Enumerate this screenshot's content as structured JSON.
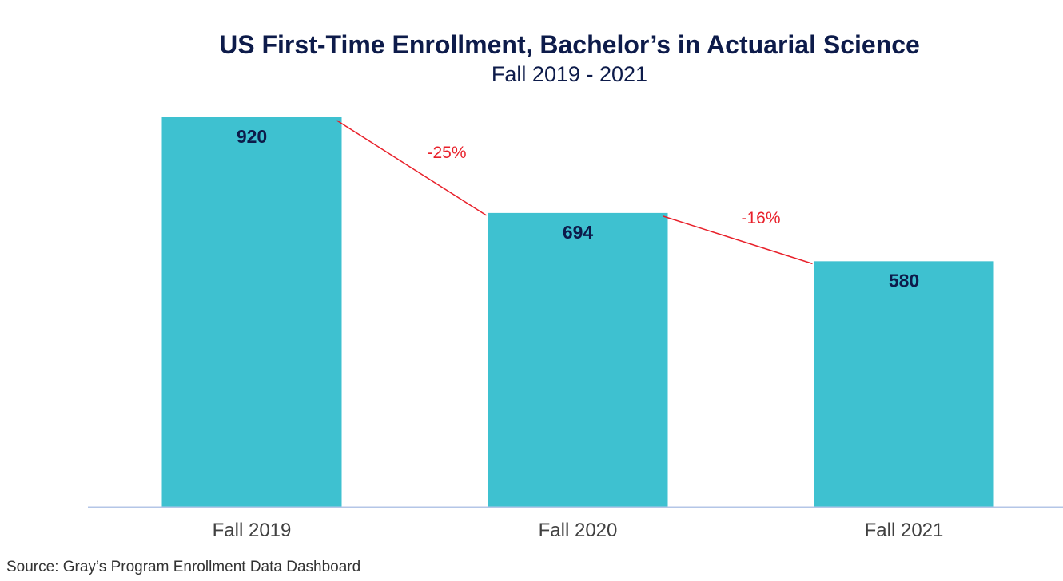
{
  "chart_data": {
    "type": "bar",
    "title": "US First-Time Enrollment, Bachelor’s in Actuarial Science",
    "subtitle": "Fall 2019 - 2021",
    "categories": [
      "Fall 2019",
      "Fall 2020",
      "Fall 2021"
    ],
    "values": [
      920,
      694,
      580
    ],
    "data_labels": [
      "920",
      "694",
      "580"
    ],
    "annotations": [
      {
        "from": "Fall 2019",
        "to": "Fall 2020",
        "text": "-25%"
      },
      {
        "from": "Fall 2020",
        "to": "Fall 2021",
        "text": "-16%"
      }
    ],
    "xlabel": "",
    "ylabel": "",
    "ylim": [
      0,
      920
    ],
    "grid": false,
    "legend": "none",
    "colors": {
      "bar": "#3ec1d0",
      "data_label": "#0d1b4a",
      "change_line": "#e8202a",
      "change_label": "#e8202a",
      "axis": "#b4c6e7",
      "title": "#0d1b4a"
    }
  },
  "source": "Source:  Gray’s Program Enrollment Data Dashboard"
}
